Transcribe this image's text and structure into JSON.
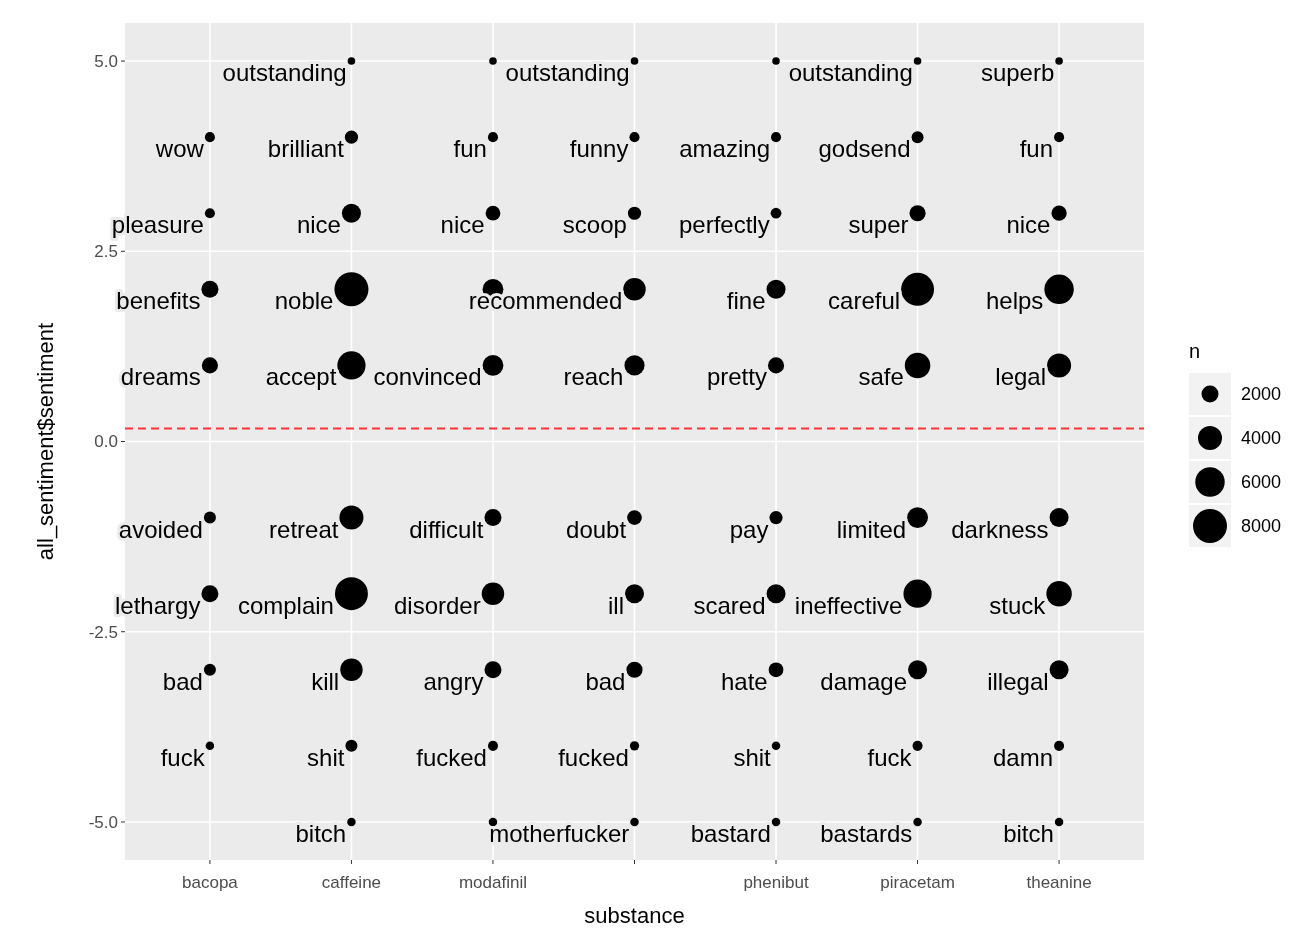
{
  "chart_data": {
    "type": "bubble",
    "xlabel": "substance",
    "ylabel": "all_sentiment$sentiment",
    "legend_title": "n",
    "grid": true,
    "categories": [
      "bacopa",
      "caffeine",
      "modafinil",
      null,
      "phenibut",
      "piracetam",
      "theanine"
    ],
    "ylim": [
      -5.5,
      5.5
    ],
    "yticks": [
      {
        "value": 5,
        "label": "5.0"
      },
      {
        "value": 2.5,
        "label": "2.5"
      },
      {
        "value": 0,
        "label": "0.0"
      },
      {
        "value": -2.5,
        "label": "-2.5"
      },
      {
        "value": -5,
        "label": "-5.0"
      }
    ],
    "size_legend": [
      2000,
      4000,
      6000,
      8000
    ],
    "ref_lines": [
      {
        "axis": "y",
        "value": 0.17,
        "color": "#ff3333",
        "line_style": "dashed"
      }
    ],
    "series": [
      {
        "color": "#000000",
        "values": [
          null,
          5,
          5,
          5,
          5,
          5,
          5
        ],
        "sizes": [
          null,
          400,
          400,
          400,
          400,
          400,
          400
        ],
        "value_labels": [
          null,
          "outstanding",
          null,
          "outstanding",
          null,
          "outstanding",
          "superb"
        ]
      },
      {
        "color": "#000000",
        "values": [
          4,
          4,
          4,
          4,
          4,
          4,
          4
        ],
        "sizes": [
          700,
          1200,
          700,
          700,
          700,
          1000,
          700
        ],
        "value_labels": [
          "wow",
          "brilliant",
          "fun",
          "funny",
          "amazing",
          "godsend",
          "fun"
        ]
      },
      {
        "color": "#000000",
        "values": [
          3,
          3,
          3,
          3,
          3,
          3,
          3
        ],
        "sizes": [
          700,
          2500,
          1500,
          1200,
          800,
          1800,
          1600
        ],
        "value_labels": [
          "pleasure",
          "nice",
          "nice",
          "scoop",
          "perfectly",
          "super",
          "nice"
        ]
      },
      {
        "color": "#000000",
        "values": [
          2,
          2,
          2,
          2,
          2,
          2,
          2
        ],
        "sizes": [
          2000,
          8000,
          3000,
          3500,
          2500,
          7500,
          6000
        ],
        "value_labels": [
          "benefits",
          "noble",
          null,
          "recommended",
          "fine",
          "careful",
          "helps"
        ]
      },
      {
        "color": "#000000",
        "values": [
          1,
          1,
          1,
          1,
          1,
          1,
          1
        ],
        "sizes": [
          1800,
          5500,
          3000,
          2800,
          1800,
          4500,
          4000
        ],
        "value_labels": [
          "dreams",
          "accept",
          "convinced",
          "reach",
          "pretty",
          "safe",
          "legal"
        ]
      },
      {
        "color": "#000000",
        "values": [
          -1,
          -1,
          -1,
          -1,
          -1,
          -1,
          -1
        ],
        "sizes": [
          1000,
          4000,
          2000,
          1500,
          1200,
          3000,
          2500
        ],
        "value_labels": [
          "avoided",
          "retreat",
          "difficult",
          "doubt",
          "pay",
          "limited",
          "darkness"
        ]
      },
      {
        "color": "#000000",
        "values": [
          -2,
          -2,
          -2,
          -2,
          -2,
          -2,
          -2
        ],
        "sizes": [
          2000,
          7500,
          3500,
          2500,
          2500,
          5500,
          4500
        ],
        "value_labels": [
          "lethargy",
          "complain",
          "disorder",
          "ill",
          "scared",
          "ineffective",
          "stuck"
        ]
      },
      {
        "color": "#000000",
        "values": [
          -3,
          -3,
          -3,
          -3,
          -3,
          -3,
          -3
        ],
        "sizes": [
          1000,
          3500,
          2000,
          1800,
          1500,
          2500,
          2500
        ],
        "value_labels": [
          "bad",
          "kill",
          "angry",
          "bad",
          "hate",
          "damage",
          "illegal"
        ]
      },
      {
        "color": "#000000",
        "values": [
          -4,
          -4,
          -4,
          -4,
          -4,
          -4,
          -4
        ],
        "sizes": [
          500,
          1000,
          700,
          600,
          500,
          700,
          700
        ],
        "value_labels": [
          "fuck",
          "shit",
          "fucked",
          "fucked",
          "shit",
          "fuck",
          "damn"
        ]
      },
      {
        "color": "#000000",
        "values": [
          null,
          -5,
          -5,
          -5,
          -5,
          -5,
          -5
        ],
        "sizes": [
          null,
          500,
          500,
          500,
          500,
          500,
          500
        ],
        "value_labels": [
          null,
          "bitch",
          null,
          "motherfucker",
          "bastard",
          "bastards",
          "bitch"
        ]
      }
    ]
  }
}
